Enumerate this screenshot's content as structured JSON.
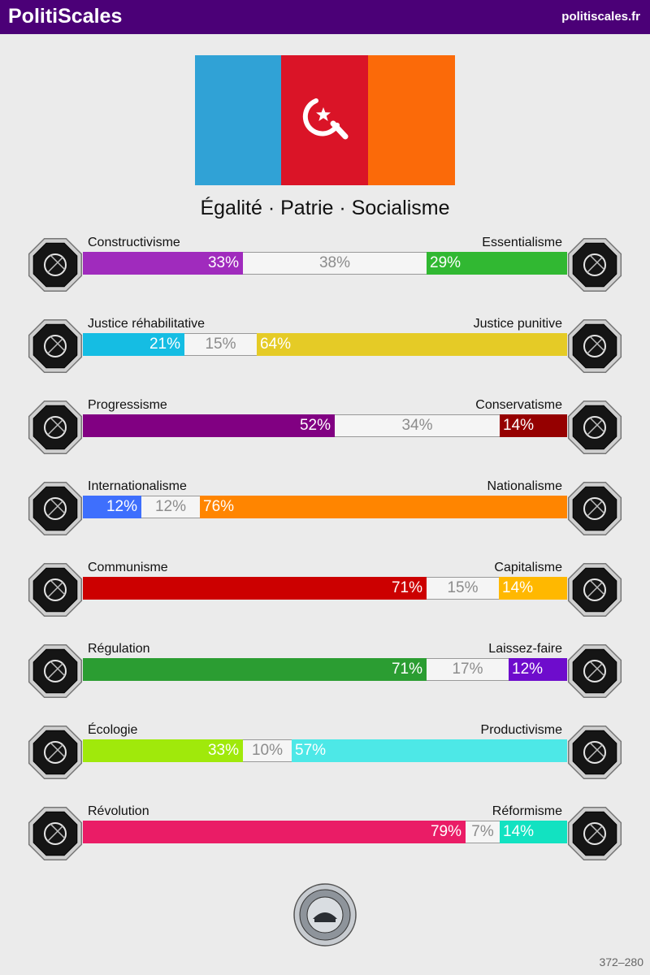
{
  "header": {
    "brand": "PolitiScales",
    "site": "politiscales.fr",
    "bg": "#4b0077"
  },
  "flag": {
    "stripes": [
      "#30a2d6",
      "#da1427",
      "#fb6a09"
    ],
    "symbol": "crescent-star-sickle-icon"
  },
  "slogan": "Égalité · Patrie · Socialisme",
  "axes": [
    {
      "left_label": "Constructivisme",
      "right_label": "Essentialisme",
      "left_pct": 33,
      "mid_pct": 38,
      "right_pct": 29,
      "left_text": "33%",
      "mid_text": "38%",
      "right_text": "29%",
      "left_color": "#a02bbd",
      "right_color": "#31b832",
      "left_icon": "eye-icon",
      "right_icon": "flower-icon"
    },
    {
      "left_label": "Justice réhabilitative",
      "right_label": "Justice punitive",
      "left_pct": 21,
      "mid_pct": 15,
      "right_pct": 64,
      "left_text": "21%",
      "mid_text": "15%",
      "right_text": "64%",
      "left_color": "#15bde3",
      "right_color": "#e5cb26",
      "left_icon": "handshake-icon",
      "right_icon": "prison-bars-icon"
    },
    {
      "left_label": "Progressisme",
      "right_label": "Conservatisme",
      "left_pct": 52,
      "mid_pct": 34,
      "right_pct": 14,
      "left_text": "52%",
      "mid_text": "34%",
      "right_text": "14%",
      "left_color": "#810082",
      "right_color": "#950000",
      "left_icon": "comet-icon",
      "right_icon": "quill-icon"
    },
    {
      "left_label": "Internationalisme",
      "right_label": "Nationalisme",
      "left_pct": 12,
      "mid_pct": 12,
      "right_pct": 76,
      "left_text": "12%",
      "mid_text": "12%",
      "right_text": "76%",
      "left_color": "#3e6ffd",
      "right_color": "#ff8500",
      "left_icon": "globe-icon",
      "right_icon": "flag-icon"
    },
    {
      "left_label": "Communisme",
      "right_label": "Capitalisme",
      "left_pct": 71,
      "mid_pct": 15,
      "right_pct": 14,
      "left_text": "71%",
      "mid_text": "15%",
      "right_text": "14%",
      "left_color": "#cc0000",
      "right_color": "#ffb800",
      "left_icon": "hammer-sickle-icon",
      "right_icon": "money-bag-icon"
    },
    {
      "left_label": "Régulation",
      "right_label": "Laissez-faire",
      "left_pct": 71,
      "mid_pct": 17,
      "right_pct": 12,
      "left_text": "71%",
      "mid_text": "17%",
      "right_text": "12%",
      "left_color": "#2b9d32",
      "right_color": "#6e0ccc",
      "left_icon": "ruler-icon",
      "right_icon": "butterfly-icon"
    },
    {
      "left_label": "Écologie",
      "right_label": "Productivisme",
      "left_pct": 33,
      "mid_pct": 10,
      "right_pct": 57,
      "left_text": "33%",
      "mid_text": "10%",
      "right_text": "57%",
      "left_color": "#a0e90b",
      "right_color": "#4de8e7",
      "left_icon": "sprout-icon",
      "right_icon": "gear-icon"
    },
    {
      "left_label": "Révolution",
      "right_label": "Réformisme",
      "left_pct": 79,
      "mid_pct": 7,
      "right_pct": 14,
      "left_text": "79%",
      "mid_text": "7%",
      "right_text": "14%",
      "left_color": "#ea1c66",
      "right_color": "#12e2c1",
      "left_icon": "raised-fist-icon",
      "right_icon": "ballot-box-icon"
    }
  ],
  "footer": {
    "seal_icon": "politiscales-seal-icon",
    "code": "372–280"
  }
}
